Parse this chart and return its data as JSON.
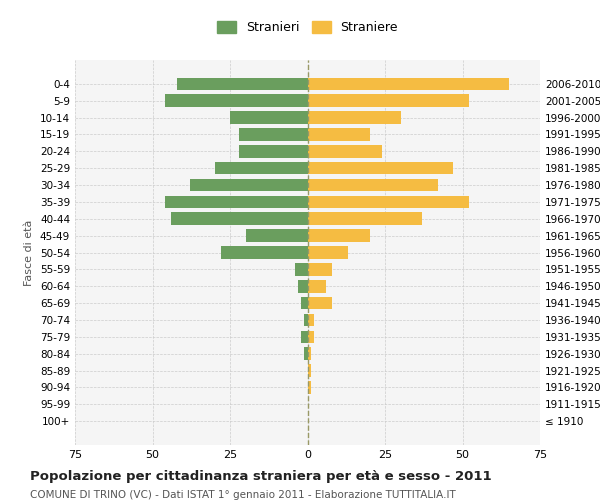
{
  "age_groups": [
    "100+",
    "95-99",
    "90-94",
    "85-89",
    "80-84",
    "75-79",
    "70-74",
    "65-69",
    "60-64",
    "55-59",
    "50-54",
    "45-49",
    "40-44",
    "35-39",
    "30-34",
    "25-29",
    "20-24",
    "15-19",
    "10-14",
    "5-9",
    "0-4"
  ],
  "birth_years": [
    "≤ 1910",
    "1911-1915",
    "1916-1920",
    "1921-1925",
    "1926-1930",
    "1931-1935",
    "1936-1940",
    "1941-1945",
    "1946-1950",
    "1951-1955",
    "1956-1960",
    "1961-1965",
    "1966-1970",
    "1971-1975",
    "1976-1980",
    "1981-1985",
    "1986-1990",
    "1991-1995",
    "1996-2000",
    "2001-2005",
    "2006-2010"
  ],
  "males": [
    0,
    0,
    0,
    0,
    1,
    2,
    1,
    2,
    3,
    4,
    28,
    20,
    44,
    46,
    38,
    30,
    22,
    22,
    25,
    46,
    42
  ],
  "females": [
    0,
    0,
    1,
    1,
    1,
    2,
    2,
    8,
    6,
    8,
    13,
    20,
    37,
    52,
    42,
    47,
    24,
    20,
    30,
    52,
    65
  ],
  "male_color": "#6a9e5e",
  "female_color": "#f5bc42",
  "title": "Popolazione per cittadinanza straniera per età e sesso - 2011",
  "subtitle": "COMUNE DI TRINO (VC) - Dati ISTAT 1° gennaio 2011 - Elaborazione TUTTITALIA.IT",
  "ylabel_left": "Fasce di età",
  "legend_male": "Stranieri",
  "legend_female": "Straniere",
  "xlim": 75,
  "bg_color": "#ffffff",
  "grid_color": "#cccccc",
  "dashed_line_color": "#999966"
}
